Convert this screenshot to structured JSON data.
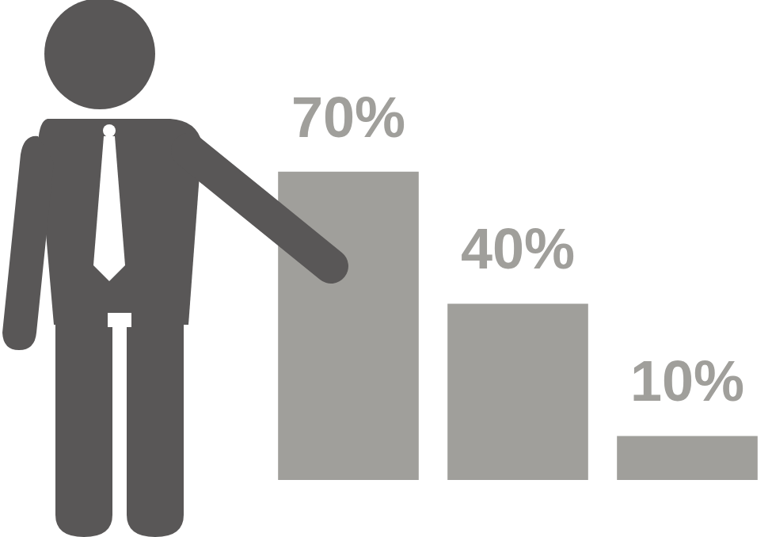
{
  "chart_data": {
    "type": "bar",
    "categories": [
      null,
      null,
      null
    ],
    "values": [
      70,
      40,
      10
    ],
    "value_labels": [
      "70%",
      "40%",
      "10%"
    ],
    "color": "#a09f9b",
    "ylim": [
      0,
      100
    ],
    "grid": false,
    "data_labels": true,
    "tick_labels": false
  }
}
